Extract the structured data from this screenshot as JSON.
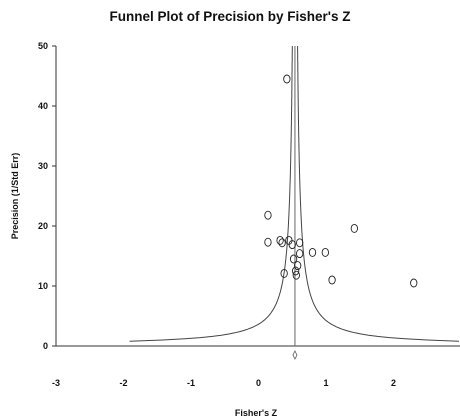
{
  "chart_data": {
    "type": "scatter",
    "title": "Funnel Plot of Precision by Fisher's Z",
    "xlabel": "Fisher's Z",
    "ylabel": "Precision (1/Std Err)",
    "xlim": [
      -3,
      3
    ],
    "ylim": [
      0,
      50
    ],
    "x_ticks": [
      "-3",
      "-2",
      "-1",
      "0",
      "1",
      "2"
    ],
    "y_ticks": [
      "0",
      "10",
      "20",
      "30",
      "40",
      "50"
    ],
    "grid": false,
    "combined_effect": 0.54,
    "points": [
      {
        "x": 0.42,
        "y": 44.5
      },
      {
        "x": 0.14,
        "y": 21.8
      },
      {
        "x": 1.42,
        "y": 19.6
      },
      {
        "x": 0.14,
        "y": 17.3
      },
      {
        "x": 0.32,
        "y": 17.6
      },
      {
        "x": 0.35,
        "y": 17.2
      },
      {
        "x": 0.45,
        "y": 17.6
      },
      {
        "x": 0.5,
        "y": 16.9
      },
      {
        "x": 0.61,
        "y": 17.2
      },
      {
        "x": 0.61,
        "y": 15.4
      },
      {
        "x": 0.8,
        "y": 15.6
      },
      {
        "x": 0.99,
        "y": 15.6
      },
      {
        "x": 0.52,
        "y": 14.5
      },
      {
        "x": 0.58,
        "y": 13.4
      },
      {
        "x": 0.55,
        "y": 12.5
      },
      {
        "x": 0.56,
        "y": 11.8
      },
      {
        "x": 0.38,
        "y": 12.1
      },
      {
        "x": 1.09,
        "y": 11.0
      },
      {
        "x": 2.3,
        "y": 10.5
      }
    ],
    "summary_marker": {
      "x": 0.54,
      "shape": "diamond"
    }
  }
}
